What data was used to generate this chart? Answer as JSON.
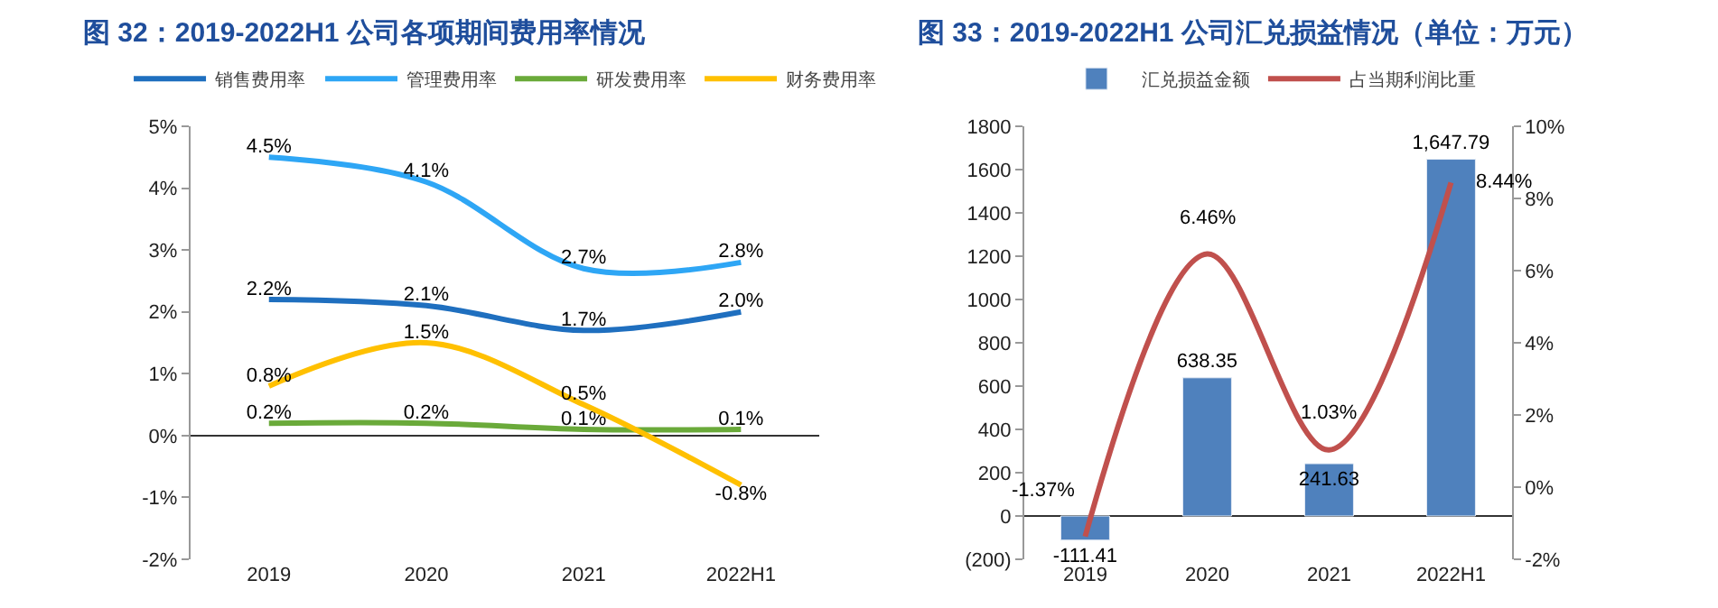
{
  "chart_data": [
    {
      "type": "line",
      "title": "图 32：2019-2022H1 公司各项期间费用率情况",
      "categories": [
        "2019",
        "2020",
        "2021",
        "2022H1"
      ],
      "ylim": [
        -2,
        5
      ],
      "yticks": [
        {
          "value": -2,
          "label": "-2%"
        },
        {
          "value": -1,
          "label": "-1%"
        },
        {
          "value": 0,
          "label": "0%"
        },
        {
          "value": 1,
          "label": "1%"
        },
        {
          "value": 2,
          "label": "2%"
        },
        {
          "value": 3,
          "label": "3%"
        },
        {
          "value": 4,
          "label": "4%"
        },
        {
          "value": 5,
          "label": "5%"
        }
      ],
      "legend": "top",
      "marker": "none",
      "line_style": "solid",
      "series": [
        {
          "name": "销售费用率",
          "color": "#1f6fbf",
          "values": [
            2.2,
            2.1,
            1.7,
            2.0
          ],
          "value_labels": [
            "2.2%",
            "2.1%",
            "1.7%",
            "2.0%"
          ]
        },
        {
          "name": "管理费用率",
          "color": "#2ea6f5",
          "values": [
            4.5,
            4.1,
            2.7,
            2.8
          ],
          "value_labels": [
            "4.5%",
            "4.1%",
            "2.7%",
            "2.8%"
          ]
        },
        {
          "name": "研发费用率",
          "color": "#6aaa3a",
          "values": [
            0.2,
            0.2,
            0.1,
            0.1
          ],
          "value_labels": [
            "0.2%",
            "0.2%",
            "0.1%",
            "0.1%"
          ]
        },
        {
          "name": "财务费用率",
          "color": "#ffc000",
          "values": [
            0.8,
            1.5,
            0.5,
            -0.8
          ],
          "value_labels": [
            "0.8%",
            "1.5%",
            "0.5%",
            "-0.8%"
          ]
        }
      ]
    },
    {
      "type": "bar",
      "title": "图 33：2019-2022H1 公司汇兑损益情况（单位：万元）",
      "categories": [
        "2019",
        "2020",
        "2021",
        "2022H1"
      ],
      "ylim": [
        -200,
        1800
      ],
      "yticks": [
        {
          "value": -200,
          "label": "(200)"
        },
        0,
        200,
        400,
        600,
        800,
        1000,
        1200,
        1400,
        1600,
        1800
      ],
      "y2lim": [
        -2,
        10
      ],
      "y2ticks": [
        {
          "value": -2,
          "label": "-2%"
        },
        {
          "value": 0,
          "label": "0%"
        },
        {
          "value": 2,
          "label": "2%"
        },
        {
          "value": 4,
          "label": "4%"
        },
        {
          "value": 6,
          "label": "6%"
        },
        {
          "value": 8,
          "label": "8%"
        },
        {
          "value": 10,
          "label": "10%"
        }
      ],
      "legend": "top",
      "series": [
        {
          "name": "汇兑损益金额",
          "type": "bar",
          "color": "#4f81bd",
          "values": [
            -111.41,
            638.35,
            241.63,
            1647.79
          ],
          "value_labels": [
            "-111.41",
            "638.35",
            "241.63",
            "1,647.79"
          ]
        },
        {
          "name": "占当期利润比重",
          "type": "line",
          "axis": "y2",
          "color": "#c0504d",
          "values": [
            -1.37,
            6.46,
            1.03,
            8.44
          ],
          "value_labels": [
            "-1.37%",
            "6.46%",
            "1.03%",
            "8.44%"
          ],
          "line_style": "solid",
          "marker": "none"
        }
      ]
    }
  ]
}
